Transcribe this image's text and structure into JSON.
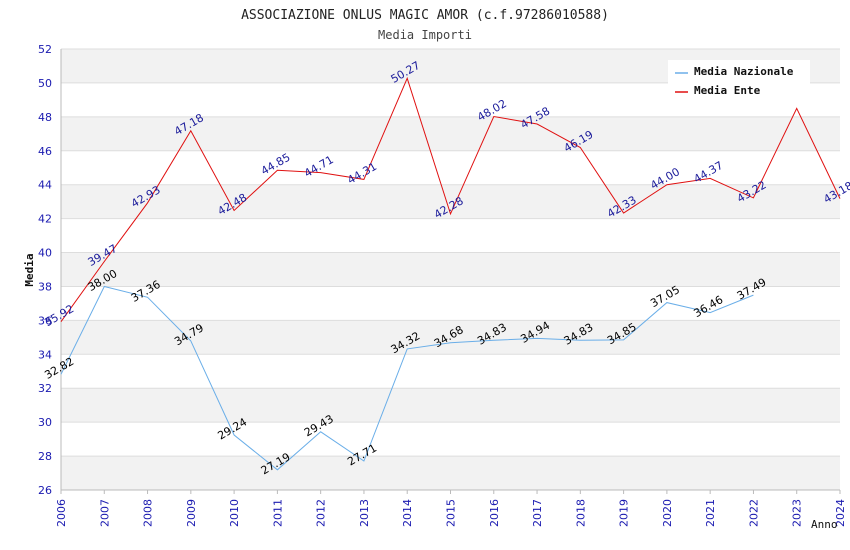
{
  "chart_data": {
    "type": "line",
    "title": "ASSOCIAZIONE ONLUS MAGIC AMOR (c.f.97286010588)",
    "subtitle": "Media Importi",
    "xlabel": "Anno",
    "ylabel": "Media",
    "x": [
      "2006",
      "2007",
      "2008",
      "2009",
      "2010",
      "2011",
      "2012",
      "2013",
      "2014",
      "2015",
      "2016",
      "2017",
      "2018",
      "2019",
      "2020",
      "2021",
      "2022",
      "2023",
      "2024"
    ],
    "ylim": [
      26,
      52
    ],
    "yticks": [
      26,
      28,
      30,
      32,
      34,
      36,
      38,
      40,
      42,
      44,
      46,
      48,
      50,
      52
    ],
    "grid": true,
    "legend_position": "top-right",
    "series": [
      {
        "name": "Media Nazionale",
        "color": "#6aaee8",
        "label_color": "#000000",
        "values": [
          32.82,
          38.0,
          37.36,
          34.79,
          29.24,
          27.19,
          29.43,
          27.71,
          34.32,
          34.68,
          34.83,
          34.94,
          34.83,
          34.85,
          37.05,
          36.46,
          37.49,
          null,
          null
        ],
        "labels": [
          "32.82",
          "38.00",
          "37.36",
          "34.79",
          "29.24",
          "27.19",
          "29.43",
          "27.71",
          "34.32",
          "34.68",
          "34.83",
          "34.94",
          "34.83",
          "34.85",
          "37.05",
          "36.46",
          "37.49",
          "",
          ""
        ]
      },
      {
        "name": "Media Ente",
        "color": "#e01010",
        "label_color": "#1a1a9a",
        "values": [
          35.92,
          39.47,
          42.93,
          47.18,
          42.48,
          44.85,
          44.71,
          44.31,
          50.27,
          42.28,
          48.02,
          47.58,
          46.19,
          42.33,
          44.0,
          44.37,
          43.22,
          48.5,
          43.18
        ],
        "labels": [
          "35.92",
          "39.47",
          "42.93",
          "47.18",
          "42.48",
          "44.85",
          "44.71",
          "44.31",
          "50.27",
          "42.28",
          "48.02",
          "47.58",
          "46.19",
          "42.33",
          "44.00",
          "44.37",
          "43.22",
          "",
          "43.18"
        ]
      }
    ],
    "colors": {
      "axis_tick_text": "#1a1ab0",
      "band_fill": "#f2f2f2",
      "grid_line": "#dddddd",
      "axis_line": "#bbbbbb"
    }
  }
}
